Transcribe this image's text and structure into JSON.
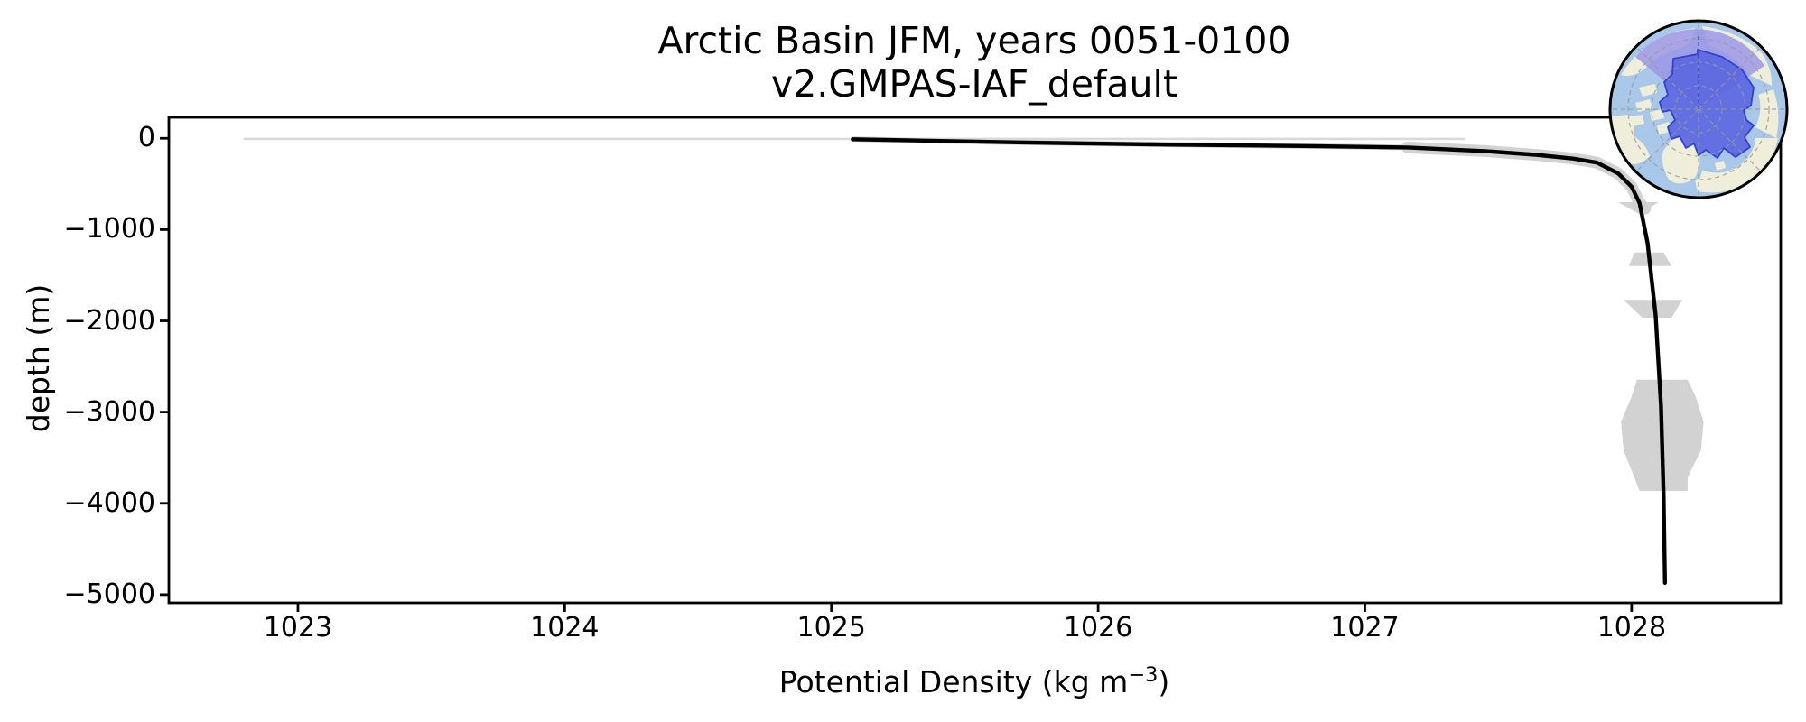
{
  "figure": {
    "title_line1": "Arctic Basin JFM, years 0051-0100",
    "title_line2": "v2.GMPAS-IAF_default",
    "xlabel_pre": "Potential Density (kg m",
    "xlabel_sup": "−3",
    "xlabel_post": ")",
    "ylabel": "depth (m)"
  },
  "chart_data": {
    "type": "line",
    "title": "Arctic Basin JFM, years 0051-0100",
    "subtitle": "v2.GMPAS-IAF_default",
    "xlabel": "Potential Density (kg m^-3)",
    "ylabel": "depth (m)",
    "xlim": [
      1022.516,
      1028.559
    ],
    "ylim": [
      -5090,
      230
    ],
    "grid": false,
    "legend": "none",
    "x_ticks": {
      "values": [
        1023,
        1024,
        1025,
        1026,
        1027,
        1028
      ],
      "labels": [
        "1023",
        "1024",
        "1025",
        "1026",
        "1027",
        "1028"
      ]
    },
    "y_ticks": {
      "values": [
        0,
        -1000,
        -2000,
        -3000,
        -4000,
        -5000
      ],
      "labels": [
        "0",
        "−1000",
        "−2000",
        "−3000",
        "−4000",
        "−5000"
      ]
    },
    "series": [
      {
        "name": "ensemble-mean-profile",
        "color": "#000000",
        "width": 4.4,
        "points": [
          [
            1025.08,
            -10
          ],
          [
            1025.7,
            -45
          ],
          [
            1026.28,
            -70
          ],
          [
            1026.8,
            -85
          ],
          [
            1027.16,
            -100
          ],
          [
            1027.45,
            -140
          ],
          [
            1027.64,
            -180
          ],
          [
            1027.78,
            -222
          ],
          [
            1027.87,
            -266
          ],
          [
            1027.95,
            -385
          ],
          [
            1028.0,
            -530
          ],
          [
            1028.03,
            -710
          ],
          [
            1028.06,
            -1150
          ],
          [
            1028.09,
            -1940
          ],
          [
            1028.11,
            -2930
          ],
          [
            1028.12,
            -3915
          ],
          [
            1028.125,
            -4870
          ]
        ]
      },
      {
        "name": "surface-spread-sliver",
        "color": "#d9d9d9",
        "width": 2.6,
        "points": [
          [
            1022.8,
            -6
          ],
          [
            1027.37,
            -6
          ]
        ]
      }
    ],
    "spread_band_segments": [
      {
        "name": "spread-band-upper",
        "width": 6,
        "points": [
          [
            1025.08,
            -10
          ],
          [
            1025.7,
            -45
          ],
          [
            1026.28,
            -70
          ],
          [
            1026.8,
            -85
          ],
          [
            1027.16,
            -100
          ]
        ]
      },
      {
        "name": "spread-band-pycnocline",
        "width": 13,
        "points": [
          [
            1027.16,
            -100
          ],
          [
            1027.45,
            -140
          ],
          [
            1027.64,
            -180
          ],
          [
            1027.78,
            -222
          ],
          [
            1027.87,
            -266
          ],
          [
            1027.95,
            -385
          ],
          [
            1028.0,
            -530
          ],
          [
            1028.03,
            -710
          ],
          [
            1028.05,
            -770
          ]
        ]
      }
    ],
    "spread_polygons": [
      {
        "name": "spread-blob-700m",
        "points": [
          [
            1027.95,
            -700
          ],
          [
            1028.1,
            -700
          ],
          [
            1028.03,
            -830
          ]
        ]
      },
      {
        "name": "spread-blob-1300m",
        "points": [
          [
            1028.01,
            -1250
          ],
          [
            1028.12,
            -1250
          ],
          [
            1028.15,
            -1400
          ],
          [
            1027.99,
            -1400
          ]
        ]
      },
      {
        "name": "spread-blob-1900m",
        "points": [
          [
            1027.97,
            -1770
          ],
          [
            1028.19,
            -1770
          ],
          [
            1028.15,
            -1965
          ],
          [
            1028.04,
            -1965
          ]
        ]
      },
      {
        "name": "spread-blob-3200m",
        "points": [
          [
            1028.02,
            -2645
          ],
          [
            1028.21,
            -2645
          ],
          [
            1028.24,
            -2830
          ],
          [
            1028.27,
            -3105
          ],
          [
            1028.26,
            -3420
          ],
          [
            1028.21,
            -3715
          ],
          [
            1028.21,
            -3865
          ],
          [
            1028.03,
            -3865
          ],
          [
            1028.01,
            -3715
          ],
          [
            1027.97,
            -3420
          ],
          [
            1027.96,
            -3105
          ],
          [
            1028.0,
            -2830
          ]
        ]
      }
    ]
  },
  "colors": {
    "background": "#ffffff",
    "axis": "#000000",
    "text": "#000000",
    "mean_line": "#000000",
    "spread_fill": "#d2d2d2",
    "surface_spread": "#d9d9d9",
    "map_ocean": "#a9c7e8",
    "map_land": "#efeeda",
    "map_region": "#5c68e1",
    "map_region_light": "#9c97e6",
    "map_region_outline": "#3240d4",
    "map_graticule": "#999999",
    "map_border": "#000000"
  }
}
